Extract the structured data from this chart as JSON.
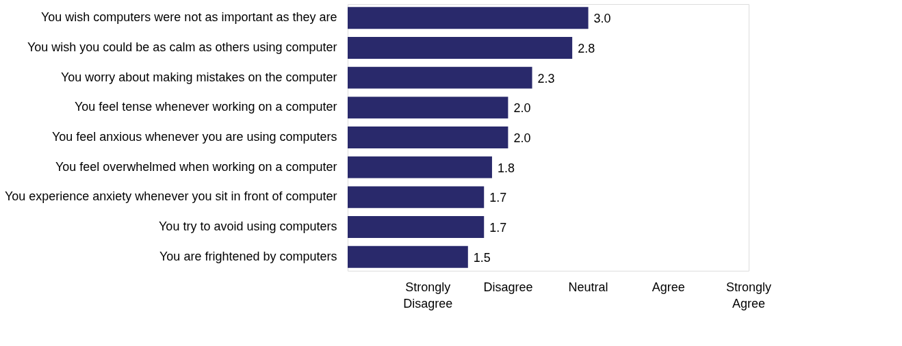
{
  "chart_data": {
    "type": "bar",
    "orientation": "horizontal",
    "categories": [
      "You wish computers were not as important as they are",
      "You wish you could be as calm as others using computer",
      "You worry about making mistakes on the computer",
      "You feel tense whenever working on a computer",
      "You feel anxious whenever you are using computers",
      "You feel overwhelmed when working on a computer",
      "You experience anxiety whenever you sit in front of computer",
      "You try to avoid using computers",
      "You are frightened by computers"
    ],
    "values": [
      3.0,
      2.8,
      2.3,
      2.0,
      2.0,
      1.8,
      1.7,
      1.7,
      1.5
    ],
    "value_labels": [
      "3.0",
      "2.8",
      "2.3",
      "2.0",
      "2.0",
      "1.8",
      "1.7",
      "1.7",
      "1.5"
    ],
    "color": "#29296b",
    "xlim": [
      0,
      5
    ],
    "annotations": [
      "Strongly Disagree",
      "Disagree",
      "Neutral",
      "Agree",
      "Strongly Agree"
    ],
    "grid": false,
    "legend": false
  }
}
